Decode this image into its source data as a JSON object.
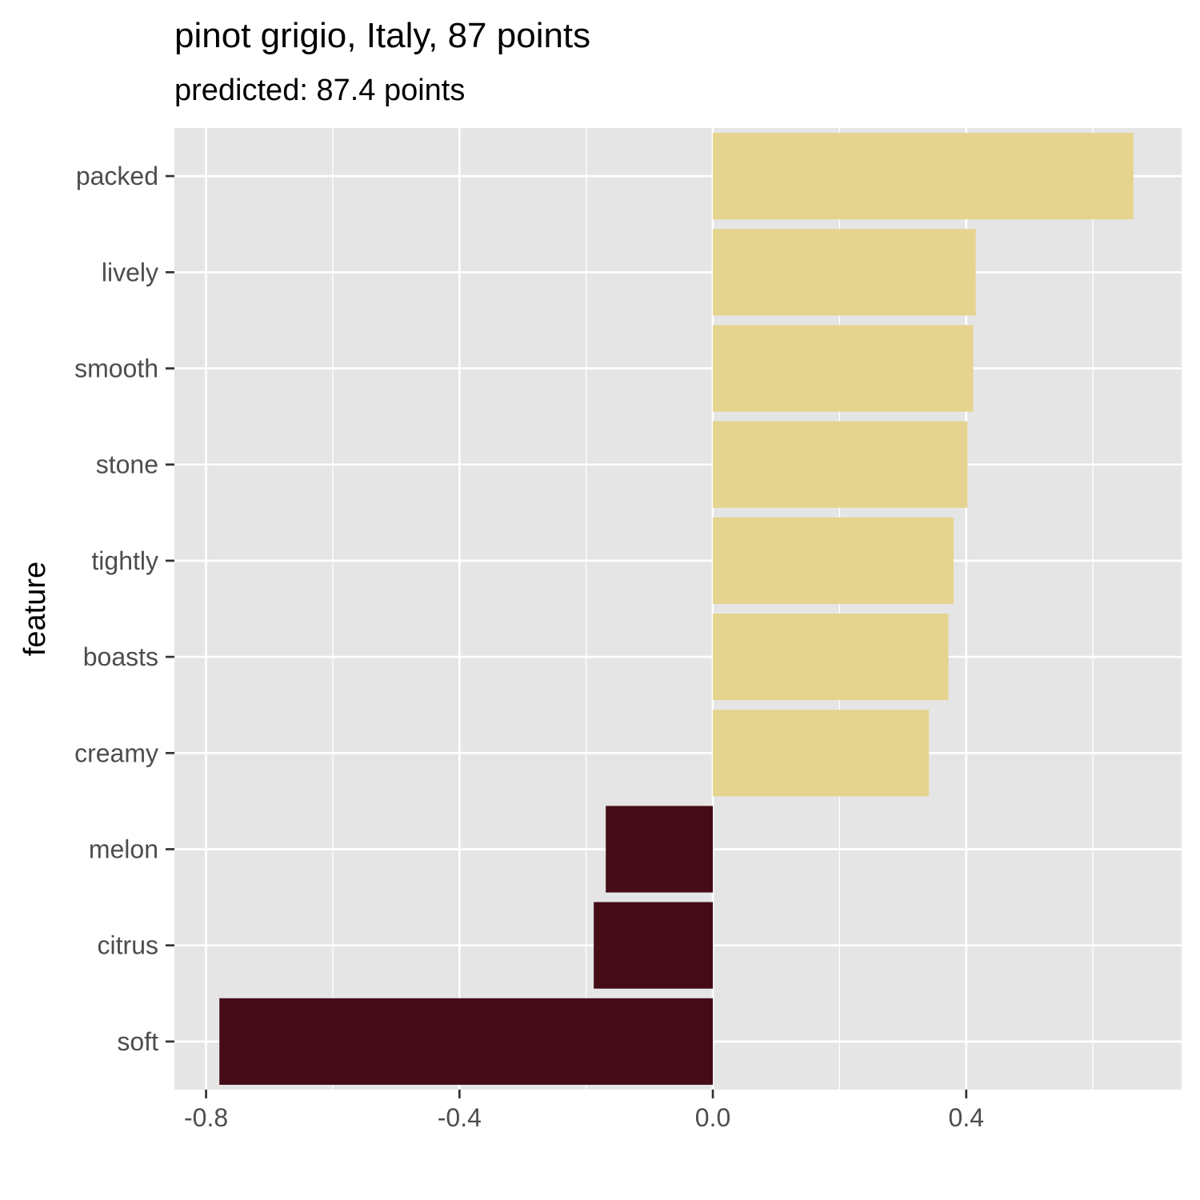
{
  "chart_data": {
    "type": "bar",
    "orientation": "horizontal",
    "title": "pinot grigio, Italy, 87 points",
    "subtitle": "predicted: 87.4 points",
    "xlabel": "",
    "ylabel": "feature",
    "categories": [
      "packed",
      "lively",
      "smooth",
      "stone",
      "tightly",
      "boasts",
      "creamy",
      "melon",
      "citrus",
      "soft"
    ],
    "values": [
      0.664,
      0.415,
      0.411,
      0.402,
      0.38,
      0.372,
      0.341,
      -0.169,
      -0.188,
      -0.779
    ],
    "xlim": [
      -0.85,
      0.74
    ],
    "xticks": [
      -0.8,
      -0.4,
      0.0,
      0.4
    ],
    "xtick_labels": [
      "-0.8",
      "-0.4",
      "0.0",
      "0.4"
    ],
    "colors": {
      "positive": "#E5D48F",
      "negative": "#450C18",
      "panel": "#E5E5E5",
      "grid": "#FFFFFF"
    },
    "grid": true,
    "legend": "none"
  }
}
